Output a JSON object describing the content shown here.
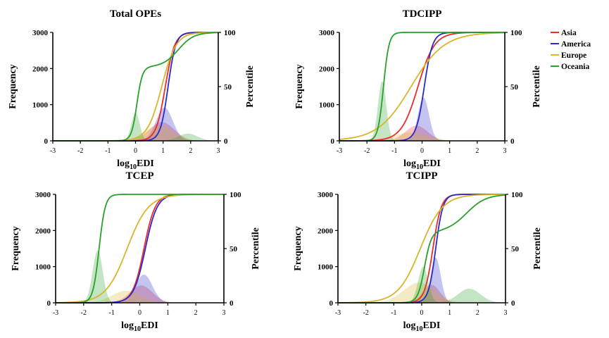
{
  "legend": {
    "items": [
      {
        "label": "Asia",
        "color": "#ee2b2b"
      },
      {
        "label": "America",
        "color": "#2a2acc"
      },
      {
        "label": "Europe",
        "color": "#d9b52a"
      },
      {
        "label": "Oceania",
        "color": "#2aa02a"
      }
    ]
  },
  "chart_data": [
    {
      "type": "area",
      "title": "Total OPEs",
      "xlabel_main": "log",
      "xlabel_sub": "10",
      "xlabel_tail": "EDI",
      "ylabel": "Frequency",
      "y2label": "Percentile",
      "xlim": [
        -3,
        3
      ],
      "ylim": [
        0,
        3000
      ],
      "y2lim": [
        0,
        100
      ],
      "xticks": [
        "-3",
        "-2",
        "-1",
        "0",
        "1",
        "2",
        "3"
      ],
      "yticks": [
        "0",
        "1000",
        "2000",
        "3000"
      ],
      "y2ticks": [
        "0",
        "50",
        "100"
      ],
      "series": [
        {
          "name": "Asia",
          "hist": {
            "center": 0.95,
            "width": 0.45,
            "peak": 520
          },
          "cdf": {
            "mu": 1.08,
            "s": 0.17
          }
        },
        {
          "name": "America",
          "hist": {
            "center": 1.05,
            "width": 0.3,
            "peak": 920
          },
          "cdf": {
            "mu": 1.18,
            "s": 0.14
          }
        },
        {
          "name": "Europe",
          "hist": {
            "center": 0.85,
            "width": 0.5,
            "peak": 420
          },
          "cdf": {
            "mu": 0.95,
            "s": 0.26
          }
        },
        {
          "name": "Oceania",
          "hist": {
            "center": 0.0,
            "width": 0.15,
            "peak": 780,
            "center2": 1.9,
            "width2": 0.35,
            "peak2": 200
          },
          "cdf": {
            "mu": 0.05,
            "s": 0.1,
            "mu2": 1.55,
            "s2": 0.28,
            "w1": 0.68
          }
        }
      ]
    },
    {
      "type": "area",
      "title": "TDCIPP",
      "xlabel_main": "log",
      "xlabel_sub": "10",
      "xlabel_tail": "EDI",
      "ylabel": "Frequency",
      "y2label": "Percentile",
      "xlim": [
        -3,
        3
      ],
      "ylim": [
        0,
        3000
      ],
      "y2lim": [
        0,
        100
      ],
      "xticks": [
        "-3",
        "-2",
        "-1",
        "0",
        "1",
        "2",
        "3"
      ],
      "yticks": [
        "0",
        "1000",
        "2000",
        "3000"
      ],
      "y2ticks": [
        "0",
        "50",
        "100"
      ],
      "series": [
        {
          "name": "Asia",
          "hist": {
            "center": -0.2,
            "width": 0.4,
            "peak": 420
          },
          "cdf": {
            "mu": -0.15,
            "s": 0.3
          }
        },
        {
          "name": "America",
          "hist": {
            "center": 0.05,
            "width": 0.2,
            "peak": 1200
          },
          "cdf": {
            "mu": 0.08,
            "s": 0.15
          }
        },
        {
          "name": "Europe",
          "hist": {
            "center": -0.4,
            "width": 0.6,
            "peak": 230
          },
          "cdf": {
            "mu": -0.4,
            "s": 0.6
          }
        },
        {
          "name": "Oceania",
          "hist": {
            "center": -1.45,
            "width": 0.15,
            "peak": 1650
          },
          "cdf": {
            "mu": -1.4,
            "s": 0.1
          }
        }
      ]
    },
    {
      "type": "area",
      "title": "TCEP",
      "xlabel_main": "log",
      "xlabel_sub": "10",
      "xlabel_tail": "EDI",
      "ylabel": "Frequency",
      "y2label": "Percentile",
      "xlim": [
        -3,
        3
      ],
      "ylim": [
        0,
        3000
      ],
      "y2lim": [
        0,
        100
      ],
      "xticks": [
        "-3",
        "-2",
        "-1",
        "0",
        "1",
        "2",
        "3"
      ],
      "yticks": [
        "0",
        "1000",
        "2000",
        "3000"
      ],
      "y2ticks": [
        "0",
        "50",
        "100"
      ],
      "series": [
        {
          "name": "Asia",
          "hist": {
            "center": 0.05,
            "width": 0.4,
            "peak": 480
          },
          "cdf": {
            "mu": 0.15,
            "s": 0.2
          }
        },
        {
          "name": "America",
          "hist": {
            "center": 0.15,
            "width": 0.3,
            "peak": 780
          },
          "cdf": {
            "mu": 0.2,
            "s": 0.21
          }
        },
        {
          "name": "Europe",
          "hist": {
            "center": -0.5,
            "width": 0.5,
            "peak": 330
          },
          "cdf": {
            "mu": -0.45,
            "s": 0.38
          }
        },
        {
          "name": "Oceania",
          "hist": {
            "center": -1.5,
            "width": 0.18,
            "peak": 1450
          },
          "cdf": {
            "mu": -1.45,
            "s": 0.11
          }
        }
      ]
    },
    {
      "type": "area",
      "title": "TCIPP",
      "xlabel_main": "log",
      "xlabel_sub": "10",
      "xlabel_tail": "EDI",
      "ylabel": "Frequency",
      "y2label": "Percentile",
      "xlim": [
        -3,
        3
      ],
      "ylim": [
        0,
        3000
      ],
      "y2lim": [
        0,
        100
      ],
      "xticks": [
        "-3",
        "-2",
        "-1",
        "0",
        "1",
        "2",
        "3"
      ],
      "yticks": [
        "0",
        "1000",
        "2000",
        "3000"
      ],
      "y2ticks": [
        "0",
        "50",
        "100"
      ],
      "series": [
        {
          "name": "Asia",
          "hist": {
            "center": 0.35,
            "width": 0.3,
            "peak": 500
          },
          "cdf": {
            "mu": 0.4,
            "s": 0.15
          }
        },
        {
          "name": "America",
          "hist": {
            "center": 0.5,
            "width": 0.18,
            "peak": 1250
          },
          "cdf": {
            "mu": 0.5,
            "s": 0.13
          }
        },
        {
          "name": "Europe",
          "hist": {
            "center": -0.1,
            "width": 0.55,
            "peak": 560
          },
          "cdf": {
            "mu": -0.05,
            "s": 0.4
          }
        },
        {
          "name": "Oceania",
          "hist": {
            "center": 0.05,
            "width": 0.18,
            "peak": 1000,
            "center2": 1.7,
            "width2": 0.4,
            "peak2": 390
          },
          "cdf": {
            "mu": 0.1,
            "s": 0.12,
            "mu2": 1.6,
            "s2": 0.35,
            "w1": 0.65
          }
        }
      ]
    }
  ]
}
